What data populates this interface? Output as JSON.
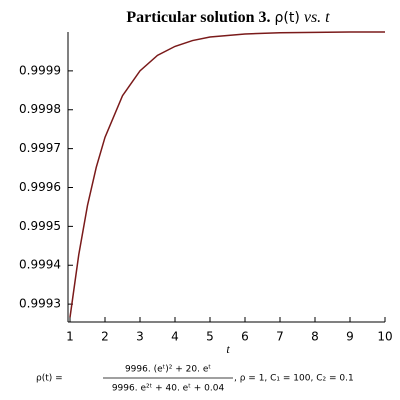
{
  "chart_data": {
    "type": "line",
    "title": [
      "Particular solution 3.",
      "ρ(t)",
      "vs. t"
    ],
    "x_label": "t",
    "formula": {
      "lhs": "ρ(t) =",
      "numerator": "9996. (eᵗ)² + 20. eᵗ",
      "denominator": "9996. e²ᵗ + 40. eᵗ + 0.04",
      "params": ", ρ = 1, C₁ = 100, C₂ = 0.1"
    },
    "x": [
      1,
      1.25,
      1.5,
      1.75,
      2,
      2.5,
      3,
      3.5,
      4,
      4.5,
      5,
      6,
      7,
      8,
      9,
      10
    ],
    "series": [
      {
        "color": "#7a1a1a",
        "values": [
          0.999266,
          0.999427,
          0.999554,
          0.999652,
          0.999729,
          0.999836,
          0.9999,
          0.99994,
          0.999963,
          0.999978,
          0.999987,
          0.999995,
          0.999998,
          0.999999,
          1.0,
          1.0
        ]
      }
    ],
    "xlim": [
      1,
      10
    ],
    "xticks": [
      1,
      2,
      3,
      4,
      5,
      6,
      7,
      8,
      9,
      10
    ],
    "ylim": [
      0.999254,
      1.0
    ],
    "yticks": [
      0.9993,
      0.9994,
      0.9995,
      0.9996,
      0.9997,
      0.9998,
      0.9999
    ],
    "grid": false
  }
}
